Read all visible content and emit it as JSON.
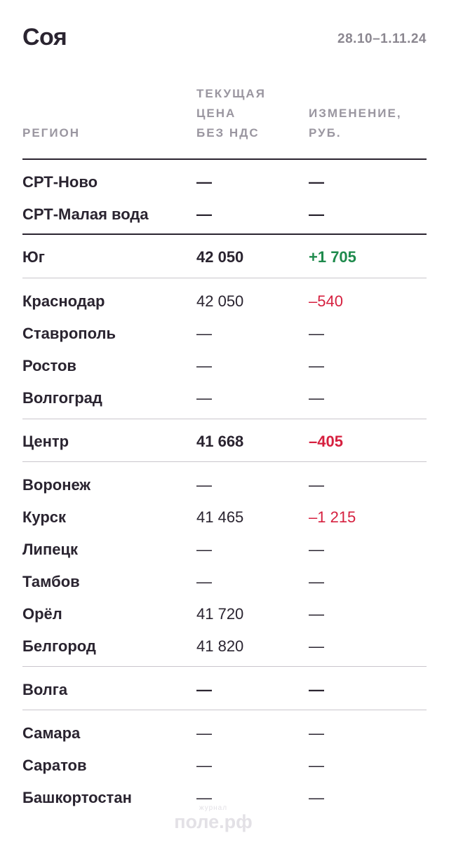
{
  "header": {
    "title": "Соя",
    "date_range": "28.10–1.11.24"
  },
  "columns": {
    "region": "РЕГИОН",
    "price_line1": "ТЕКУЩАЯ",
    "price_line2": "ЦЕНА",
    "price_line3": "БЕЗ НДС",
    "change_line1": "ИЗМЕНЕНИЕ,",
    "change_line2": "РУБ."
  },
  "rows": [
    {
      "region": "СРТ-Ново",
      "price": "—",
      "change": "—",
      "style": "bold"
    },
    {
      "region": "СРТ-Малая вода",
      "price": "—",
      "change": "—",
      "style": "bold"
    },
    {
      "region": "Юг",
      "price": "42 050",
      "change": "+1 705",
      "style": "bold",
      "change_trend": "up"
    },
    {
      "region": "Краснодар",
      "price": "42 050",
      "change": "–540",
      "change_trend": "down"
    },
    {
      "region": "Ставрополь",
      "price": "—",
      "change": "—"
    },
    {
      "region": "Ростов",
      "price": "—",
      "change": "—"
    },
    {
      "region": "Волгоград",
      "price": "—",
      "change": "—"
    },
    {
      "region": "Центр",
      "price": "41 668",
      "change": "–405",
      "style": "bold",
      "change_trend": "down"
    },
    {
      "region": "Воронеж",
      "price": "—",
      "change": "—"
    },
    {
      "region": "Курск",
      "price": "41 465",
      "change": "–1 215",
      "change_trend": "down"
    },
    {
      "region": "Липецк",
      "price": "—",
      "change": "—"
    },
    {
      "region": "Тамбов",
      "price": "—",
      "change": "—"
    },
    {
      "region": "Орёл",
      "price": "41 720",
      "change": "—"
    },
    {
      "region": "Белгород",
      "price": "41 820",
      "change": "—"
    },
    {
      "region": "Волга",
      "price": "—",
      "change": "—",
      "style": "bold"
    },
    {
      "region": "Самара",
      "price": "—",
      "change": "—"
    },
    {
      "region": "Саратов",
      "price": "—",
      "change": "—"
    },
    {
      "region": "Башкортостан",
      "price": "—",
      "change": "—"
    }
  ],
  "colors": {
    "positive": "#1e8a4c",
    "negative": "#d6203f",
    "text": "#2a2430",
    "muted": "#9a96a0"
  },
  "watermark": {
    "small": "журнал",
    "big": "поле.рф"
  }
}
